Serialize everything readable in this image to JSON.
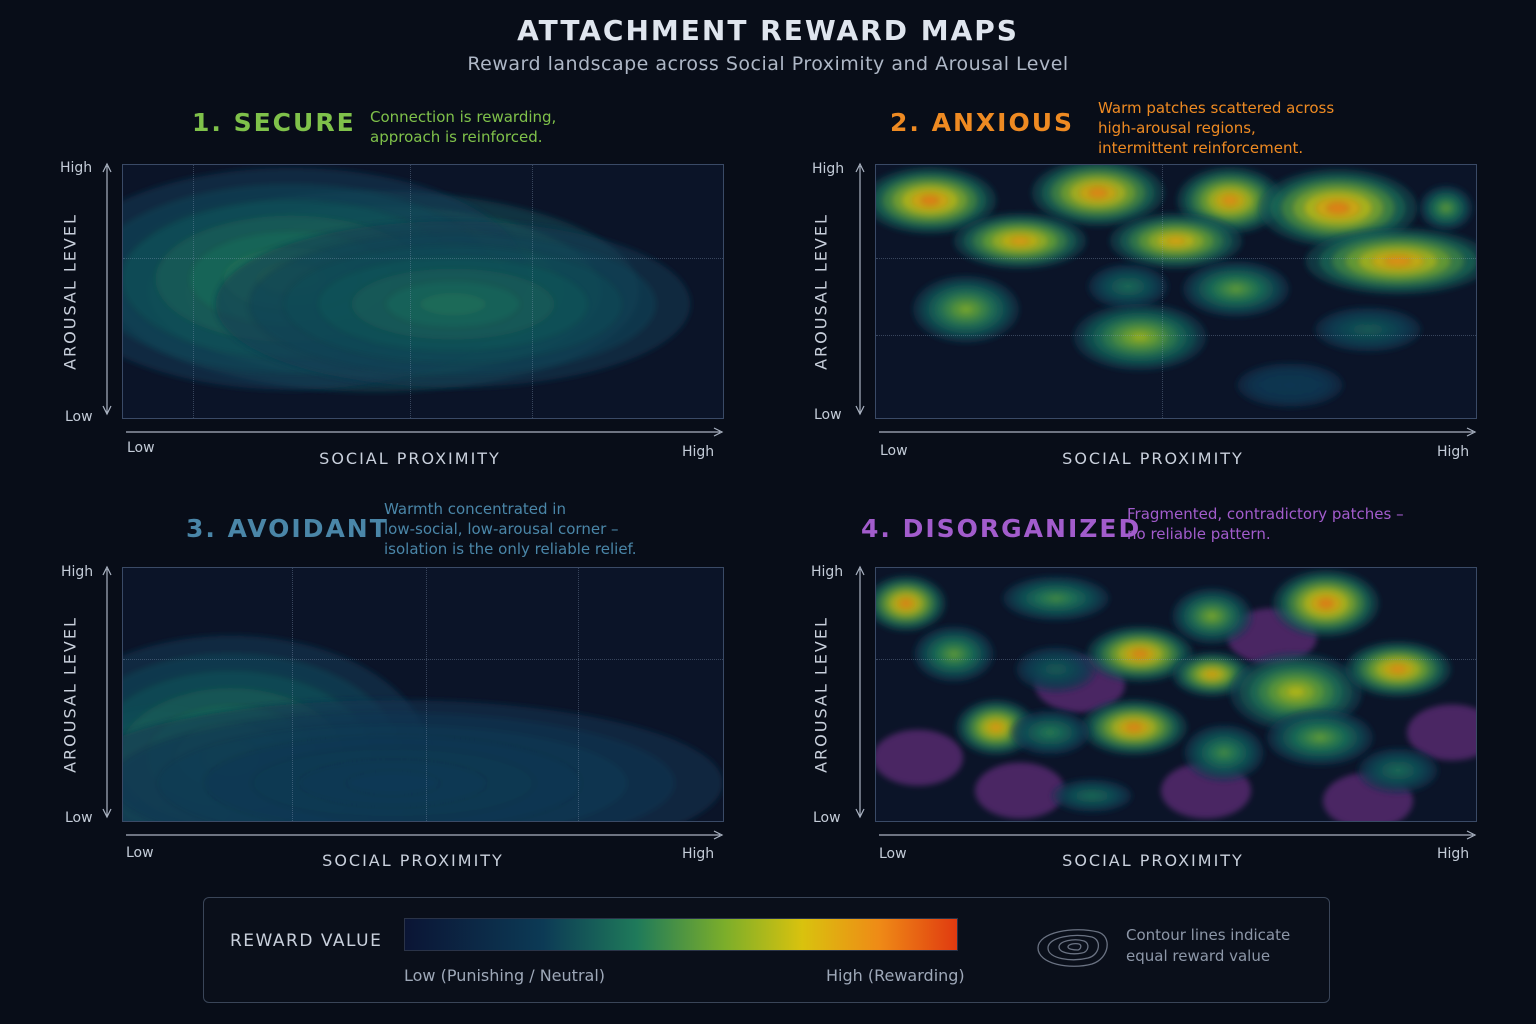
{
  "header": {
    "title": "ATTACHMENT REWARD MAPS",
    "subtitle": "Reward landscape across Social Proximity and Arousal Level"
  },
  "panels": [
    {
      "title": "1. SECURE",
      "description": "Connection is rewarding,\napproach is reinforced.",
      "color": "#7fc14a",
      "xlabel": "SOCIAL PROXIMITY",
      "ylabel": "AROUSAL LEVEL",
      "x_low": "Low",
      "x_high": "High",
      "y_low": "Low",
      "y_high": "High"
    },
    {
      "title": "2. ANXIOUS",
      "description": "Warm patches scattered across\nhigh-arousal regions,\nintermittent reinforcement.",
      "color": "#ee8a22",
      "xlabel": "SOCIAL PROXIMITY",
      "ylabel": "AROUSAL LEVEL",
      "x_low": "Low",
      "x_high": "High",
      "y_low": "Low",
      "y_high": "High"
    },
    {
      "title": "3. AVOIDANT",
      "description": "Warmth concentrated in\nlow-social, low-arousal corner –\nisolation is the only reliable relief.",
      "color": "#4a86a8",
      "xlabel": "SOCIAL PROXIMITY",
      "ylabel": "AROUSAL LEVEL",
      "x_low": "Low",
      "x_high": "High",
      "y_low": "Low",
      "y_high": "High"
    },
    {
      "title": "4. DISORGANIZED",
      "description": "Fragmented, contradictory patches –\nno reliable pattern.",
      "color": "#a25ccc",
      "xlabel": "SOCIAL PROXIMITY",
      "ylabel": "AROUSAL LEVEL",
      "x_low": "Low",
      "x_high": "High",
      "y_low": "Low",
      "y_high": "High"
    }
  ],
  "legend": {
    "title": "REWARD VALUE",
    "low_label": "Low (Punishing / Neutral)",
    "high_label": "High (Rewarding)",
    "note": "Contour lines indicate\nequal reward value"
  },
  "chart_data": [
    {
      "type": "heatmap",
      "title": "1. SECURE",
      "xlabel": "SOCIAL PROXIMITY",
      "ylabel": "AROUSAL LEVEL",
      "x_range": [
        "Low",
        "High"
      ],
      "y_range": [
        "Low",
        "High"
      ],
      "grid": true,
      "peaks": [
        {
          "x": 0.42,
          "y": 0.5,
          "value": 0.78,
          "spread_x": 0.2,
          "spread_y": 0.18
        },
        {
          "x": 0.28,
          "y": 0.55,
          "value": 0.45,
          "spread_x": 0.18,
          "spread_y": 0.2
        },
        {
          "x": 0.55,
          "y": 0.45,
          "value": 0.4,
          "spread_x": 0.18,
          "spread_y": 0.15
        }
      ]
    },
    {
      "type": "heatmap",
      "title": "2. ANXIOUS",
      "xlabel": "SOCIAL PROXIMITY",
      "ylabel": "AROUSAL LEVEL",
      "x_range": [
        "Low",
        "High"
      ],
      "y_range": [
        "Low",
        "High"
      ],
      "grid": true,
      "peaks": [
        {
          "x": 0.09,
          "y": 0.86,
          "value": 0.92,
          "spread_x": 0.05,
          "spread_y": 0.06
        },
        {
          "x": 0.37,
          "y": 0.89,
          "value": 0.9,
          "spread_x": 0.05,
          "spread_y": 0.06
        },
        {
          "x": 0.59,
          "y": 0.86,
          "value": 0.88,
          "spread_x": 0.04,
          "spread_y": 0.06
        },
        {
          "x": 0.77,
          "y": 0.83,
          "value": 0.92,
          "spread_x": 0.06,
          "spread_y": 0.07
        },
        {
          "x": 0.95,
          "y": 0.83,
          "value": 0.55,
          "spread_x": 0.02,
          "spread_y": 0.04
        },
        {
          "x": 0.24,
          "y": 0.7,
          "value": 0.85,
          "spread_x": 0.05,
          "spread_y": 0.05
        },
        {
          "x": 0.5,
          "y": 0.7,
          "value": 0.82,
          "spread_x": 0.05,
          "spread_y": 0.05
        },
        {
          "x": 0.87,
          "y": 0.62,
          "value": 0.88,
          "spread_x": 0.07,
          "spread_y": 0.06
        },
        {
          "x": 0.6,
          "y": 0.51,
          "value": 0.55,
          "spread_x": 0.04,
          "spread_y": 0.05
        },
        {
          "x": 0.42,
          "y": 0.52,
          "value": 0.4,
          "spread_x": 0.03,
          "spread_y": 0.04
        },
        {
          "x": 0.15,
          "y": 0.43,
          "value": 0.6,
          "spread_x": 0.04,
          "spread_y": 0.06
        },
        {
          "x": 0.44,
          "y": 0.32,
          "value": 0.65,
          "spread_x": 0.05,
          "spread_y": 0.06
        },
        {
          "x": 0.82,
          "y": 0.35,
          "value": 0.35,
          "spread_x": 0.04,
          "spread_y": 0.04
        },
        {
          "x": 0.69,
          "y": 0.13,
          "value": 0.25,
          "spread_x": 0.04,
          "spread_y": 0.04
        }
      ]
    },
    {
      "type": "heatmap",
      "title": "3. AVOIDANT",
      "xlabel": "SOCIAL PROXIMITY",
      "ylabel": "AROUSAL LEVEL",
      "x_range": [
        "Low",
        "High"
      ],
      "y_range": [
        "Low",
        "High"
      ],
      "grid": true,
      "peaks": [
        {
          "x": 0.06,
          "y": 0.18,
          "value": 0.82,
          "spread_x": 0.07,
          "spread_y": 0.12
        },
        {
          "x": 0.18,
          "y": 0.25,
          "value": 0.45,
          "spread_x": 0.15,
          "spread_y": 0.22
        },
        {
          "x": 0.45,
          "y": 0.15,
          "value": 0.25,
          "spread_x": 0.25,
          "spread_y": 0.15
        }
      ]
    },
    {
      "type": "heatmap",
      "title": "4. DISORGANIZED",
      "xlabel": "SOCIAL PROXIMITY",
      "ylabel": "AROUSAL LEVEL",
      "x_range": [
        "Low",
        "High"
      ],
      "y_range": [
        "Low",
        "High"
      ],
      "grid": true,
      "peaks": [
        {
          "x": 0.05,
          "y": 0.86,
          "value": 0.9,
          "spread_x": 0.03,
          "spread_y": 0.05
        },
        {
          "x": 0.13,
          "y": 0.66,
          "value": 0.55,
          "spread_x": 0.03,
          "spread_y": 0.05
        },
        {
          "x": 0.3,
          "y": 0.88,
          "value": 0.5,
          "spread_x": 0.04,
          "spread_y": 0.04
        },
        {
          "x": 0.3,
          "y": 0.6,
          "value": 0.35,
          "spread_x": 0.03,
          "spread_y": 0.04
        },
        {
          "x": 0.44,
          "y": 0.66,
          "value": 0.9,
          "spread_x": 0.04,
          "spread_y": 0.05
        },
        {
          "x": 0.56,
          "y": 0.81,
          "value": 0.6,
          "spread_x": 0.03,
          "spread_y": 0.05
        },
        {
          "x": 0.75,
          "y": 0.86,
          "value": 0.92,
          "spread_x": 0.04,
          "spread_y": 0.06
        },
        {
          "x": 0.56,
          "y": 0.58,
          "value": 0.82,
          "spread_x": 0.03,
          "spread_y": 0.04
        },
        {
          "x": 0.7,
          "y": 0.51,
          "value": 0.7,
          "spread_x": 0.05,
          "spread_y": 0.07
        },
        {
          "x": 0.87,
          "y": 0.6,
          "value": 0.88,
          "spread_x": 0.04,
          "spread_y": 0.05
        },
        {
          "x": 0.2,
          "y": 0.37,
          "value": 0.85,
          "spread_x": 0.03,
          "spread_y": 0.05
        },
        {
          "x": 0.43,
          "y": 0.37,
          "value": 0.9,
          "spread_x": 0.04,
          "spread_y": 0.05
        },
        {
          "x": 0.58,
          "y": 0.27,
          "value": 0.5,
          "spread_x": 0.03,
          "spread_y": 0.05
        },
        {
          "x": 0.74,
          "y": 0.33,
          "value": 0.55,
          "spread_x": 0.04,
          "spread_y": 0.05
        },
        {
          "x": 0.87,
          "y": 0.2,
          "value": 0.4,
          "spread_x": 0.03,
          "spread_y": 0.04
        },
        {
          "x": 0.29,
          "y": 0.35,
          "value": 0.45,
          "spread_x": 0.03,
          "spread_y": 0.04
        },
        {
          "x": 0.36,
          "y": 0.1,
          "value": 0.4,
          "spread_x": 0.03,
          "spread_y": 0.03
        }
      ],
      "cold_patches": [
        {
          "x": 0.07,
          "y": 0.25
        },
        {
          "x": 0.34,
          "y": 0.54
        },
        {
          "x": 0.55,
          "y": 0.12
        },
        {
          "x": 0.96,
          "y": 0.35
        },
        {
          "x": 0.24,
          "y": 0.12
        },
        {
          "x": 0.66,
          "y": 0.73
        },
        {
          "x": 0.82,
          "y": 0.08
        }
      ]
    }
  ]
}
